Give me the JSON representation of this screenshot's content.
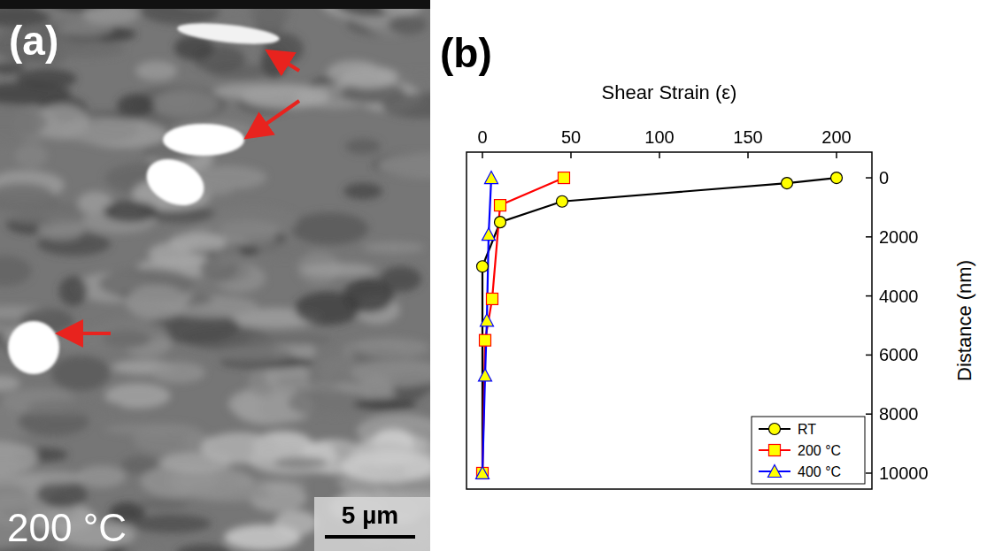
{
  "panel_a": {
    "label": "(a)",
    "temperature": "200 °C",
    "scale_bar": "5 µm"
  },
  "panel_b": {
    "label": "(b)"
  },
  "chart_data": {
    "type": "line",
    "x_label": "Shear Strain (ε)",
    "y_label": "Distance (nm)",
    "xlim": [
      -9,
      220
    ],
    "ylim": [
      10540,
      -870
    ],
    "xticks": [
      0,
      50,
      100,
      150,
      200
    ],
    "yticks": [
      0,
      2000,
      4000,
      6000,
      8000,
      10000
    ],
    "legend": "lower right",
    "marker": "circle",
    "series": [
      {
        "name": "RT",
        "color": "#000000",
        "marker": "circle",
        "x": [
          200,
          172,
          45,
          10,
          0,
          0
        ],
        "values": [
          0,
          180,
          800,
          1500,
          3000,
          10000
        ]
      },
      {
        "name": "200 °C",
        "color": "#ff0000",
        "marker": "square",
        "x": [
          46,
          10,
          5.5,
          1.5,
          0
        ],
        "values": [
          0,
          930,
          4100,
          5500,
          10000
        ]
      },
      {
        "name": "400 °C",
        "color": "#0000ff",
        "marker": "triangle",
        "x": [
          5,
          3.5,
          2.5,
          1.5,
          0
        ],
        "values": [
          0,
          1920,
          4830,
          6690,
          10000
        ]
      }
    ]
  }
}
